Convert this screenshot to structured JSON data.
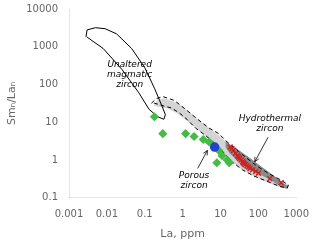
{
  "chart_data": {
    "type": "scatter",
    "xlabel": "La, ppm",
    "ylabel": "Smₙ/Laₙ",
    "log": true,
    "grid": false,
    "xlim": [
      0.001,
      1000
    ],
    "ylim": [
      0.1,
      10000
    ],
    "xticks": [
      0.001,
      0.01,
      0.1,
      1,
      10,
      100,
      1000
    ],
    "yticks": [
      0.1,
      1,
      10,
      100,
      1000,
      10000
    ],
    "series": [
      {
        "type": "area",
        "color": "#d4d4d4",
        "values": [
          [
            0.18,
            28
          ],
          [
            0.22,
            38
          ],
          [
            0.32,
            42
          ],
          [
            0.7,
            32
          ],
          [
            1.5,
            18
          ],
          [
            3,
            10
          ],
          [
            6,
            6
          ],
          [
            10,
            4
          ],
          [
            15,
            2.8
          ],
          [
            25,
            1.8
          ],
          [
            50,
            1.0
          ],
          [
            100,
            0.6
          ],
          [
            200,
            0.4
          ],
          [
            400,
            0.28
          ],
          [
            600,
            0.22
          ],
          [
            550,
            0.18
          ],
          [
            350,
            0.2
          ],
          [
            150,
            0.28
          ],
          [
            70,
            0.4
          ],
          [
            35,
            0.6
          ],
          [
            18,
            1.0
          ],
          [
            10,
            1.8
          ],
          [
            6,
            3.0
          ],
          [
            3.5,
            5
          ],
          [
            2,
            8
          ],
          [
            1.2,
            12
          ],
          [
            0.7,
            18
          ],
          [
            0.4,
            24
          ],
          [
            0.25,
            26
          ],
          [
            0.18,
            28
          ]
        ]
      },
      {
        "type": "area",
        "color": "#8a8a8a",
        "values": [
          [
            14,
            3.0
          ],
          [
            18,
            2.5
          ],
          [
            30,
            1.8
          ],
          [
            60,
            1.1
          ],
          [
            120,
            0.65
          ],
          [
            250,
            0.38
          ],
          [
            500,
            0.22
          ],
          [
            600,
            0.2
          ],
          [
            550,
            0.18
          ],
          [
            400,
            0.2
          ],
          [
            220,
            0.3
          ],
          [
            100,
            0.45
          ],
          [
            55,
            0.65
          ],
          [
            28,
            1.0
          ],
          [
            18,
            1.5
          ],
          [
            14,
            2.2
          ],
          [
            14,
            3.0
          ]
        ]
      },
      {
        "type": "line",
        "line_style": "dashed",
        "color": "#000000",
        "values": [
          [
            0.15,
            32
          ],
          [
            0.2,
            42
          ],
          [
            0.3,
            48
          ],
          [
            0.6,
            38
          ],
          [
            1.2,
            22
          ],
          [
            2.5,
            12
          ],
          [
            5,
            7
          ],
          [
            9,
            5
          ],
          [
            14,
            3.2
          ],
          [
            22,
            2.2
          ],
          [
            45,
            1.2
          ],
          [
            90,
            0.7
          ],
          [
            180,
            0.45
          ],
          [
            380,
            0.3
          ],
          [
            620,
            0.22
          ],
          [
            580,
            0.18
          ],
          [
            370,
            0.2
          ],
          [
            160,
            0.28
          ],
          [
            75,
            0.38
          ],
          [
            38,
            0.55
          ],
          [
            20,
            0.9
          ],
          [
            12,
            1.6
          ],
          [
            7,
            2.8
          ],
          [
            4,
            4.5
          ],
          [
            2.2,
            7
          ],
          [
            1.3,
            12
          ],
          [
            0.8,
            18
          ],
          [
            0.5,
            24
          ],
          [
            0.28,
            28
          ],
          [
            0.18,
            32
          ],
          [
            0.15,
            32
          ]
        ]
      },
      {
        "type": "line",
        "line_style": "solid",
        "color": "#000000",
        "values": [
          [
            0.0028,
            1800
          ],
          [
            0.003,
            2800
          ],
          [
            0.005,
            3200
          ],
          [
            0.009,
            3000
          ],
          [
            0.018,
            2200
          ],
          [
            0.045,
            900
          ],
          [
            0.1,
            280
          ],
          [
            0.18,
            80
          ],
          [
            0.28,
            28
          ],
          [
            0.35,
            16
          ],
          [
            0.32,
            12
          ],
          [
            0.22,
            14
          ],
          [
            0.13,
            22
          ],
          [
            0.07,
            60
          ],
          [
            0.025,
            250
          ],
          [
            0.008,
            900
          ],
          [
            0.003,
            1800
          ]
        ]
      },
      {
        "type": "scatter",
        "marker": "diamond",
        "color": "#44bb44",
        "values": [
          [
            0.18,
            14
          ],
          [
            0.3,
            5
          ],
          [
            1.2,
            5.0
          ],
          [
            2.0,
            4.2
          ],
          [
            3.5,
            3.5
          ],
          [
            5.0,
            3.0
          ],
          [
            7.0,
            2.2
          ],
          [
            9.0,
            1.8
          ],
          [
            11.0,
            1.3
          ],
          [
            15.0,
            1.0
          ],
          [
            17.0,
            0.85
          ],
          [
            8.0,
            0.85
          ]
        ]
      },
      {
        "type": "scatter",
        "marker": "x",
        "color": "#cc2222",
        "values": [
          [
            18,
            2.2
          ],
          [
            20,
            2.0
          ],
          [
            22,
            1.8
          ],
          [
            25,
            1.5
          ],
          [
            28,
            1.3
          ],
          [
            30,
            1.2
          ],
          [
            32,
            1.1
          ],
          [
            35,
            1.0
          ],
          [
            38,
            0.9
          ],
          [
            40,
            0.85
          ],
          [
            42,
            0.8
          ],
          [
            45,
            0.75
          ],
          [
            50,
            0.7
          ],
          [
            55,
            0.65
          ],
          [
            60,
            0.6
          ],
          [
            70,
            0.55
          ],
          [
            85,
            0.5
          ],
          [
            100,
            0.45
          ],
          [
            200,
            0.32
          ],
          [
            400,
            0.25
          ]
        ]
      },
      {
        "type": "scatter",
        "marker": "circle",
        "color": "#2244cc",
        "values": [
          [
            7,
            2.2
          ]
        ]
      }
    ],
    "annotations": [
      {
        "text": "Unaltered\nmagmatic\nzircon",
        "x": 0.04,
        "y": 180
      },
      {
        "text": "Porous\nzircon",
        "x": 2.0,
        "y": 0.52,
        "arrow": {
          "from": [
            2.5,
            0.6
          ],
          "to": [
            4.5,
            1.8
          ]
        }
      },
      {
        "text": "Hydrothermal\nzircon",
        "x": 200,
        "y": 5,
        "arrow": {
          "from": [
            180,
            4
          ],
          "to": [
            80,
            0.9
          ]
        }
      }
    ]
  }
}
